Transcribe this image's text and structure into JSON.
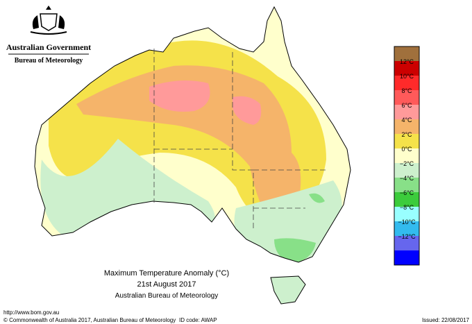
{
  "header": {
    "government": "Australian Government",
    "agency": "Bureau of Meteorology"
  },
  "title": {
    "lines": [
      "Maximum Temperature Anomaly (°C)",
      "21st August 2017",
      "Australian Bureau of Meteorology"
    ]
  },
  "legend": {
    "colors": [
      "#a0703c",
      "#cc0000",
      "#ff2a2a",
      "#ff5a5a",
      "#ff9a9a",
      "#f5b46a",
      "#f5e24a",
      "#ffffcc",
      "#cdf0cd",
      "#88e088",
      "#3ccc3c",
      "#99ffff",
      "#33bbee",
      "#6666ee",
      "#0000ff"
    ],
    "labels": [
      "12°C",
      "10°C",
      "8°C",
      "6°C",
      "4°C",
      "2°C",
      "0°C",
      "−2°C",
      "−4°C",
      "−6°C",
      "−8°C",
      "−10°C",
      "−12°C"
    ]
  },
  "footer": {
    "url": "http://www.bom.gov.au",
    "copyright": "© Commonwealth of Australia 2017, Australian Bureau of Meteorology",
    "id_code": "ID code: AWAP",
    "issued": "Issued: 22/08/2017"
  }
}
